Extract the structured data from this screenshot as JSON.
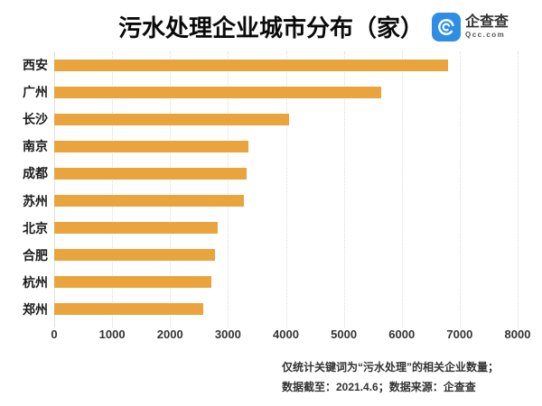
{
  "title": "污水处理企业城市分布（家）",
  "logo": {
    "name": "企查查",
    "domain": "Qcc.com",
    "icon": "qcc-logo-icon",
    "icon_color": "#2F8DE4"
  },
  "chart_data": {
    "type": "bar",
    "orientation": "horizontal",
    "title": "污水处理企业城市分布（家）",
    "categories": [
      "西安",
      "广州",
      "长沙",
      "南京",
      "成都",
      "苏州",
      "北京",
      "合肥",
      "杭州",
      "郑州"
    ],
    "values": [
      6800,
      5650,
      4050,
      3350,
      3320,
      3280,
      2830,
      2780,
      2720,
      2580
    ],
    "xlabel": "",
    "ylabel": "",
    "xlim": [
      0,
      8000
    ],
    "x_ticks": [
      0,
      1000,
      2000,
      3000,
      4000,
      5000,
      6000,
      7000,
      8000
    ],
    "bar_color": "#E9A43D",
    "grid": "vertical-dotted",
    "legend": "none"
  },
  "footer": {
    "line1": "仅统计关键词为“污水处理”的相关企业数量；",
    "line2": "数据截至：2021.4.6；数据来源：企查查"
  }
}
